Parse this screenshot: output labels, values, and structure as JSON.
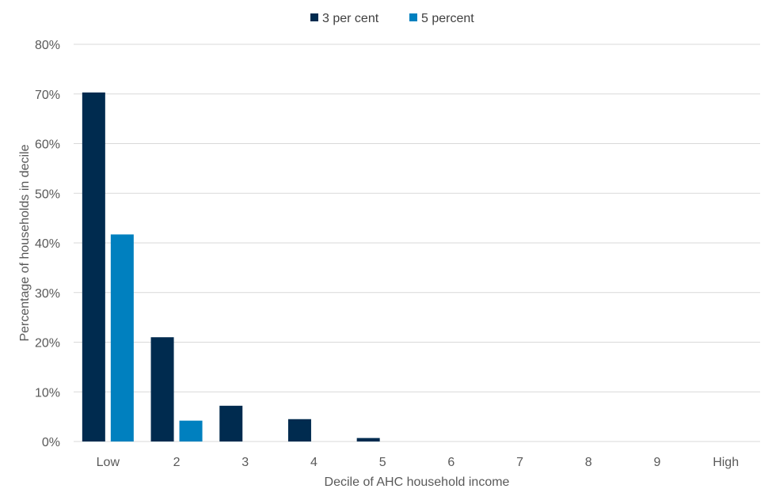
{
  "chart_data": {
    "type": "bar",
    "categories": [
      "Low",
      "2",
      "3",
      "4",
      "5",
      "6",
      "7",
      "8",
      "9",
      "High"
    ],
    "series": [
      {
        "name": "3 per cent",
        "color": "#002B4F",
        "values": [
          70.3,
          21.0,
          7.2,
          4.5,
          0.7,
          0,
          0,
          0,
          0,
          0
        ]
      },
      {
        "name": "5 percent",
        "color": "#0080BF",
        "values": [
          41.7,
          4.2,
          0,
          0,
          0,
          0,
          0,
          0,
          0,
          0
        ]
      }
    ],
    "xlabel": "Decile of AHC household income",
    "ylabel": "Percentage of households in decile",
    "ylim": [
      0,
      80
    ],
    "yticks": [
      "0%",
      "10%",
      "20%",
      "30%",
      "40%",
      "50%",
      "60%",
      "70%",
      "80%"
    ],
    "grid": true,
    "legend_position": "top-center"
  }
}
